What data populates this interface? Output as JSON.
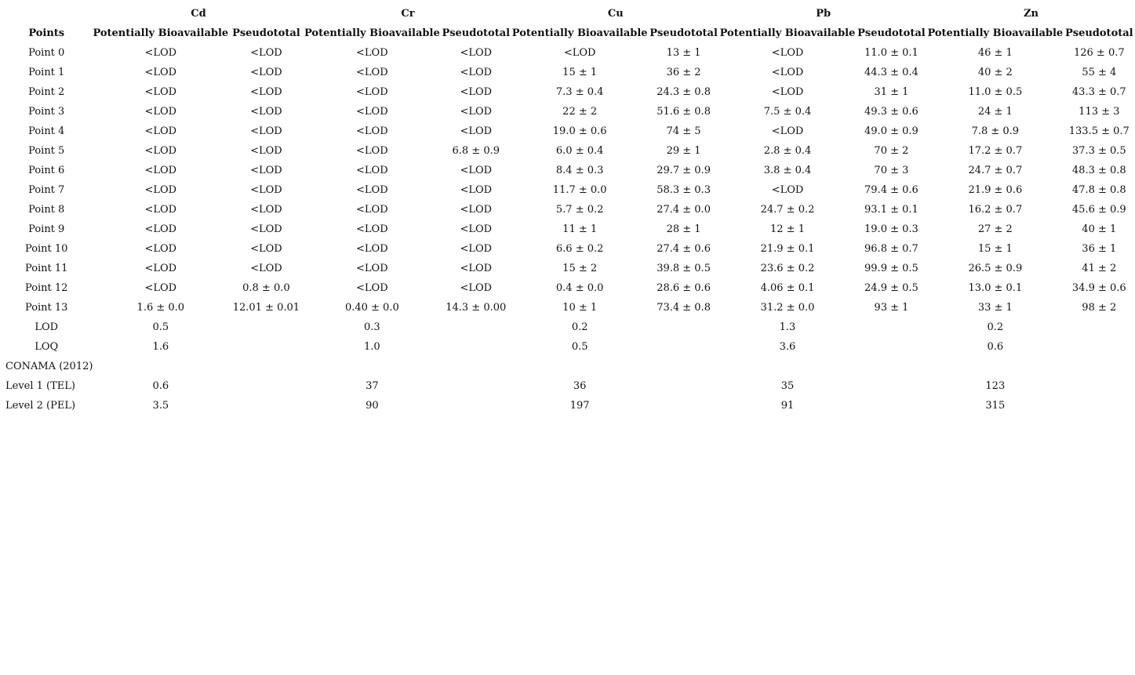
{
  "table": {
    "metals": [
      "Cd",
      "Cr",
      "Cu",
      "Pb",
      "Zn"
    ],
    "points_header": "Points",
    "sub_headers": [
      "Potentially Bioavailable",
      "Pseudototal"
    ],
    "rows": [
      {
        "label": "Point 0",
        "values": [
          "<LOD",
          "<LOD",
          "<LOD",
          "<LOD",
          "<LOD",
          "13 ± 1",
          "<LOD",
          "11.0 ± 0.1",
          "46 ± 1",
          "126 ± 0.7"
        ]
      },
      {
        "label": "Point 1",
        "values": [
          "<LOD",
          "<LOD",
          "<LOD",
          "<LOD",
          "15 ± 1",
          "36 ± 2",
          "<LOD",
          "44.3 ± 0.4",
          "40 ± 2",
          "55 ± 4"
        ]
      },
      {
        "label": "Point 2",
        "values": [
          "<LOD",
          "<LOD",
          "<LOD",
          "<LOD",
          "7.3 ± 0.4",
          "24.3 ± 0.8",
          "<LOD",
          "31 ± 1",
          "11.0 ± 0.5",
          "43.3 ± 0.7"
        ]
      },
      {
        "label": "Point 3",
        "values": [
          "<LOD",
          "<LOD",
          "<LOD",
          "<LOD",
          "22 ± 2",
          "51.6 ± 0.8",
          "7.5 ± 0.4",
          "49.3 ± 0.6",
          "24 ± 1",
          "113 ± 3"
        ]
      },
      {
        "label": "Point 4",
        "values": [
          "<LOD",
          "<LOD",
          "<LOD",
          "<LOD",
          "19.0 ± 0.6",
          "74 ± 5",
          "<LOD",
          "49.0 ± 0.9",
          "7.8 ± 0.9",
          "133.5 ± 0.7"
        ]
      },
      {
        "label": "Point 5",
        "values": [
          "<LOD",
          "<LOD",
          "<LOD",
          "6.8 ± 0.9",
          "6.0 ± 0.4",
          "29 ± 1",
          "2.8 ± 0.4",
          "70 ± 2",
          "17.2 ± 0.7",
          "37.3 ± 0.5"
        ]
      },
      {
        "label": "Point 6",
        "values": [
          "<LOD",
          "<LOD",
          "<LOD",
          "<LOD",
          "8.4 ± 0.3",
          "29.7 ± 0.9",
          "3.8 ± 0.4",
          "70 ± 3",
          "24.7 ± 0.7",
          "48.3 ± 0.8"
        ]
      },
      {
        "label": "Point 7",
        "values": [
          "<LOD",
          "<LOD",
          "<LOD",
          "<LOD",
          "11.7 ± 0.0",
          "58.3 ± 0.3",
          "<LOD",
          "79.4 ± 0.6",
          "21.9 ± 0.6",
          "47.8 ± 0.8"
        ]
      },
      {
        "label": "Point 8",
        "values": [
          "<LOD",
          "<LOD",
          "<LOD",
          "<LOD",
          "5.7 ± 0.2",
          "27.4 ± 0.0",
          "24.7 ± 0.2",
          "93.1 ± 0.1",
          "16.2 ± 0.7",
          "45.6 ± 0.9"
        ]
      },
      {
        "label": "Point 9",
        "values": [
          "<LOD",
          "<LOD",
          "<LOD",
          "<LOD",
          "11 ± 1",
          "28 ± 1",
          "12 ± 1",
          "19.0 ± 0.3",
          "27 ± 2",
          "40 ± 1"
        ]
      },
      {
        "label": "Point 10",
        "values": [
          "<LOD",
          "<LOD",
          "<LOD",
          "<LOD",
          "6.6 ± 0.2",
          "27.4 ± 0.6",
          "21.9 ± 0.1",
          "96.8 ± 0.7",
          "15 ± 1",
          "36 ± 1"
        ]
      },
      {
        "label": "Point 11",
        "values": [
          "<LOD",
          "<LOD",
          "<LOD",
          "<LOD",
          "15 ± 2",
          "39.8 ± 0.5",
          "23.6 ± 0.2",
          "99.9 ± 0.5",
          "26.5 ± 0.9",
          "41 ± 2"
        ]
      },
      {
        "label": "Point 12",
        "values": [
          "<LOD",
          "0.8 ± 0.0",
          "<LOD",
          "<LOD",
          "0.4 ± 0.0",
          "28.6 ± 0.6",
          "4.06 ± 0.1",
          "24.9 ± 0.5",
          "13.0 ± 0.1",
          "34.9 ± 0.6"
        ]
      },
      {
        "label": "Point 13",
        "values": [
          "1.6 ± 0.0",
          "12.01 ± 0.01",
          "0.40 ± 0.0",
          "14.3 ± 0.00",
          "10 ± 1",
          "73.4 ± 0.8",
          "31.2 ± 0.0",
          "93 ± 1",
          "33 ± 1",
          "98 ± 2"
        ]
      },
      {
        "label": "LOD",
        "values": [
          "0.5",
          "",
          "0.3",
          "",
          "0.2",
          "",
          "1.3",
          "",
          "0.2",
          ""
        ]
      },
      {
        "label": "LOQ",
        "values": [
          "1.6",
          "",
          "1.0",
          "",
          "0.5",
          "",
          "3.6",
          "",
          "0.6",
          ""
        ]
      },
      {
        "label": "CONAMA (2012)",
        "align": "left",
        "values": [
          "",
          "",
          "",
          "",
          "",
          "",
          "",
          "",
          "",
          ""
        ]
      },
      {
        "label": "Level 1 (TEL)",
        "align": "left",
        "values": [
          "0.6",
          "",
          "37",
          "",
          "36",
          "",
          "35",
          "",
          "123",
          ""
        ]
      },
      {
        "label": "Level 2 (PEL)",
        "align": "left",
        "values": [
          "3.5",
          "",
          "90",
          "",
          "197",
          "",
          "91",
          "",
          "315",
          ""
        ]
      }
    ]
  }
}
